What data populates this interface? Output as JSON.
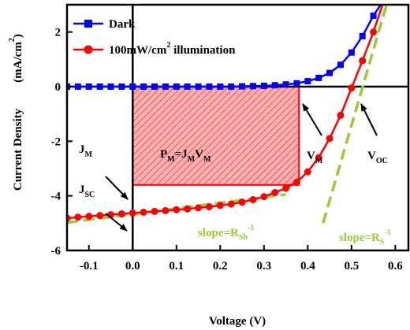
{
  "chart_data": {
    "type": "line",
    "xlabel": "Voltage (V)",
    "ylabel": "Current Density",
    "ylabel_unit": {
      "open": "(mA/cm",
      "sup": "2",
      "close": ")"
    },
    "xlim": [
      -0.15,
      0.63
    ],
    "ylim": [
      -6,
      3
    ],
    "xticks": [
      "-0.1",
      "0.0",
      "0.1",
      "0.2",
      "0.3",
      "0.4",
      "0.5",
      "0.6"
    ],
    "xtick_values": [
      -0.1,
      0.0,
      0.1,
      0.2,
      0.3,
      0.4,
      0.5,
      0.6
    ],
    "yticks": [
      "2",
      "0",
      "-2",
      "-4",
      "-6"
    ],
    "ytick_values": [
      2,
      0,
      -2,
      -4,
      -6
    ],
    "legend": {
      "position": "top-left",
      "items": [
        {
          "series": "dark",
          "text": "Dark"
        },
        {
          "series": "illum",
          "text": "100mW/cm",
          "sup": "2",
          "tail": " illumination"
        }
      ]
    },
    "series": [
      {
        "name": "Dark",
        "key": "dark",
        "color": "#0000ff",
        "marker": "square",
        "x": [
          -0.15,
          -0.125,
          -0.1,
          -0.075,
          -0.05,
          -0.025,
          0.0,
          0.025,
          0.05,
          0.075,
          0.1,
          0.125,
          0.15,
          0.175,
          0.2,
          0.225,
          0.25,
          0.275,
          0.3,
          0.325,
          0.35,
          0.375,
          0.4,
          0.425,
          0.45,
          0.475,
          0.5,
          0.525,
          0.55,
          0.575
        ],
        "y": [
          0,
          0,
          0,
          0,
          0,
          0,
          0,
          0,
          0,
          0,
          0,
          0,
          0,
          0,
          0,
          0,
          0.01,
          0.02,
          0.03,
          0.05,
          0.08,
          0.12,
          0.2,
          0.32,
          0.5,
          0.8,
          1.25,
          1.85,
          2.6,
          3.2
        ]
      },
      {
        "name": "100mW/cm2 illumination",
        "key": "illum",
        "color": "#ff0000",
        "marker": "circle",
        "x": [
          -0.15,
          -0.125,
          -0.1,
          -0.075,
          -0.05,
          -0.025,
          0.0,
          0.025,
          0.05,
          0.075,
          0.1,
          0.125,
          0.15,
          0.175,
          0.2,
          0.225,
          0.25,
          0.275,
          0.3,
          0.325,
          0.35,
          0.375,
          0.4,
          0.425,
          0.45,
          0.475,
          0.5,
          0.525,
          0.55,
          0.575
        ],
        "y": [
          -4.82,
          -4.78,
          -4.75,
          -4.72,
          -4.69,
          -4.66,
          -4.63,
          -4.6,
          -4.57,
          -4.54,
          -4.51,
          -4.48,
          -4.44,
          -4.4,
          -4.35,
          -4.3,
          -4.23,
          -4.14,
          -4.03,
          -3.88,
          -3.72,
          -3.5,
          -3.12,
          -2.6,
          -1.9,
          -1.05,
          -0.05,
          0.95,
          2.0,
          3.2
        ]
      }
    ],
    "mpp_rect": {
      "x0": 0.0,
      "x1": 0.38,
      "y0": 0.0,
      "y1": -3.6,
      "color": "#ff0000"
    },
    "fit_lines": [
      {
        "name": "shunt",
        "color": "#99cc33",
        "x": [
          -0.15,
          0.35
        ],
        "y": [
          -4.98,
          -3.95
        ]
      },
      {
        "name": "series",
        "color": "#99cc33",
        "x": [
          0.435,
          0.58
        ],
        "y": [
          -5.0,
          3.0
        ]
      }
    ],
    "annotations": {
      "pm": {
        "P": "P",
        "Psub": "M",
        "eq": "=J",
        "Jsub": "M",
        "V": "V",
        "Vsub": "M"
      },
      "jm": {
        "main": "J",
        "sub": "M"
      },
      "jsc": {
        "main": "J",
        "sub": "SC"
      },
      "vm": {
        "main": "V",
        "sub": "M"
      },
      "voc": {
        "main": "V",
        "sub": "OC"
      },
      "slope_rsh": {
        "text": "slope=R",
        "sub": "Sh",
        "sup": "-1"
      },
      "slope_rs": {
        "text": "slope=R",
        "sub": "S",
        "sup": "-1"
      }
    }
  }
}
